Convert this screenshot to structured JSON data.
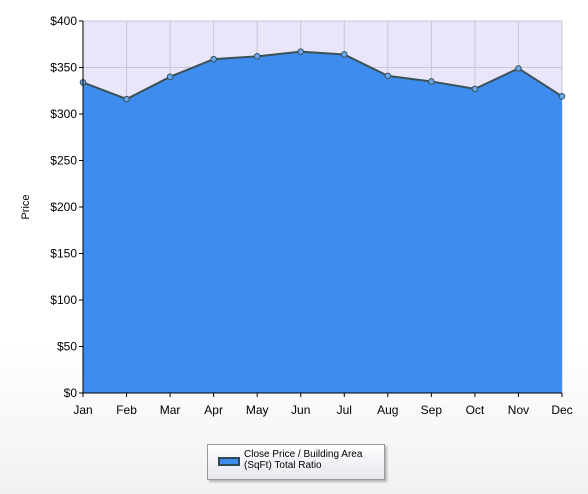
{
  "chart_data": {
    "type": "area",
    "categories": [
      "Jan",
      "Feb",
      "Mar",
      "Apr",
      "May",
      "Jun",
      "Jul",
      "Aug",
      "Sep",
      "Oct",
      "Nov",
      "Dec"
    ],
    "series": [
      {
        "name": "Close Price / Building Area (SqFt) Total Ratio",
        "values": [
          334,
          316,
          340,
          359,
          362,
          367,
          364,
          341,
          335,
          327,
          349,
          319
        ]
      }
    ],
    "ylabel": "Price",
    "ylim": [
      0,
      400
    ],
    "yticks": [
      0,
      50,
      100,
      150,
      200,
      250,
      300,
      350,
      400
    ],
    "ytick_labels": [
      "$0",
      "$50",
      "$100",
      "$150",
      "$200",
      "$250",
      "$300",
      "$350",
      "$400"
    ],
    "grid": true,
    "legend_position": "bottom-center",
    "colors": {
      "fill": "#3f8cef",
      "line": "#3a5258",
      "plot_background": "#e8e6f8",
      "grid": "#c8c6d4"
    }
  }
}
